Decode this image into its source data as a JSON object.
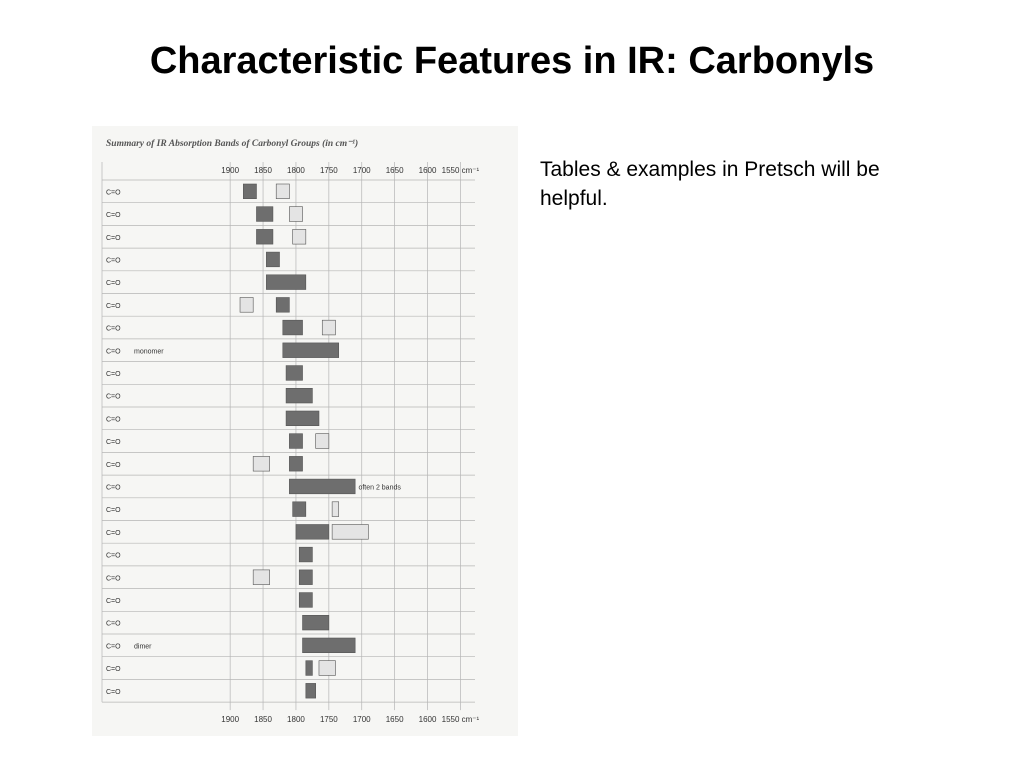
{
  "slide": {
    "title": "Characteristic Features in IR: Carbonyls",
    "note": "Tables & examples in Pretsch will be helpful."
  },
  "chart_data": {
    "type": "bar",
    "title": "Summary of IR Absorption Bands of Carbonyl Groups (in cm⁻¹)",
    "xlabel": "",
    "ylabel": "",
    "x_ticks": [
      "1900",
      "1850",
      "1800",
      "1750",
      "1700",
      "1650",
      "1600",
      "1550 cm⁻¹"
    ],
    "x_tick_values": [
      1900,
      1850,
      1800,
      1750,
      1700,
      1650,
      1600,
      1550
    ],
    "xlim": [
      1920,
      1540
    ],
    "x_reversed": true,
    "grid": true,
    "colors": {
      "strong": "#6e6e6e",
      "weak": "#e4e4e4",
      "grid": "#b5b5b5"
    },
    "annotations": [
      "often 2 bands"
    ],
    "row_labels": [
      "",
      "",
      "",
      "",
      "",
      "",
      "",
      "monomer",
      "",
      "",
      "",
      "",
      "",
      "",
      "",
      "",
      "",
      "",
      "",
      "",
      "dimer",
      "",
      ""
    ],
    "rows": [
      {
        "bands": [
          [
            1880,
            1860,
            "strong"
          ],
          [
            1830,
            1810,
            "weak"
          ]
        ]
      },
      {
        "bands": [
          [
            1860,
            1835,
            "strong"
          ],
          [
            1810,
            1790,
            "weak"
          ]
        ]
      },
      {
        "bands": [
          [
            1860,
            1835,
            "strong"
          ],
          [
            1805,
            1785,
            "weak"
          ]
        ]
      },
      {
        "bands": [
          [
            1845,
            1825,
            "strong"
          ]
        ]
      },
      {
        "bands": [
          [
            1845,
            1785,
            "strong"
          ]
        ]
      },
      {
        "bands": [
          [
            1885,
            1865,
            "weak"
          ],
          [
            1830,
            1810,
            "strong"
          ]
        ]
      },
      {
        "bands": [
          [
            1820,
            1790,
            "strong"
          ],
          [
            1760,
            1740,
            "weak"
          ]
        ]
      },
      {
        "bands": [
          [
            1820,
            1735,
            "strong"
          ]
        ]
      },
      {
        "bands": [
          [
            1815,
            1790,
            "strong"
          ]
        ]
      },
      {
        "bands": [
          [
            1815,
            1775,
            "strong"
          ]
        ]
      },
      {
        "bands": [
          [
            1815,
            1765,
            "strong"
          ]
        ]
      },
      {
        "bands": [
          [
            1810,
            1790,
            "strong"
          ],
          [
            1770,
            1750,
            "weak"
          ]
        ]
      },
      {
        "bands": [
          [
            1865,
            1840,
            "weak"
          ],
          [
            1810,
            1790,
            "strong"
          ]
        ]
      },
      {
        "bands": [
          [
            1810,
            1710,
            "strong"
          ]
        ]
      },
      {
        "bands": [
          [
            1805,
            1785,
            "strong"
          ],
          [
            1745,
            1735,
            "weak"
          ]
        ]
      },
      {
        "bands": [
          [
            1800,
            1750,
            "strong"
          ],
          [
            1745,
            1690,
            "weak"
          ]
        ]
      },
      {
        "bands": [
          [
            1795,
            1775,
            "strong"
          ]
        ]
      },
      {
        "bands": [
          [
            1865,
            1840,
            "weak"
          ],
          [
            1795,
            1775,
            "strong"
          ]
        ]
      },
      {
        "bands": [
          [
            1795,
            1775,
            "strong"
          ]
        ]
      },
      {
        "bands": [
          [
            1790,
            1750,
            "strong"
          ]
        ]
      },
      {
        "bands": [
          [
            1790,
            1710,
            "strong"
          ]
        ]
      },
      {
        "bands": [
          [
            1785,
            1775,
            "strong"
          ],
          [
            1765,
            1740,
            "weak"
          ]
        ]
      },
      {
        "bands": [
          [
            1785,
            1770,
            "strong"
          ]
        ]
      }
    ]
  }
}
